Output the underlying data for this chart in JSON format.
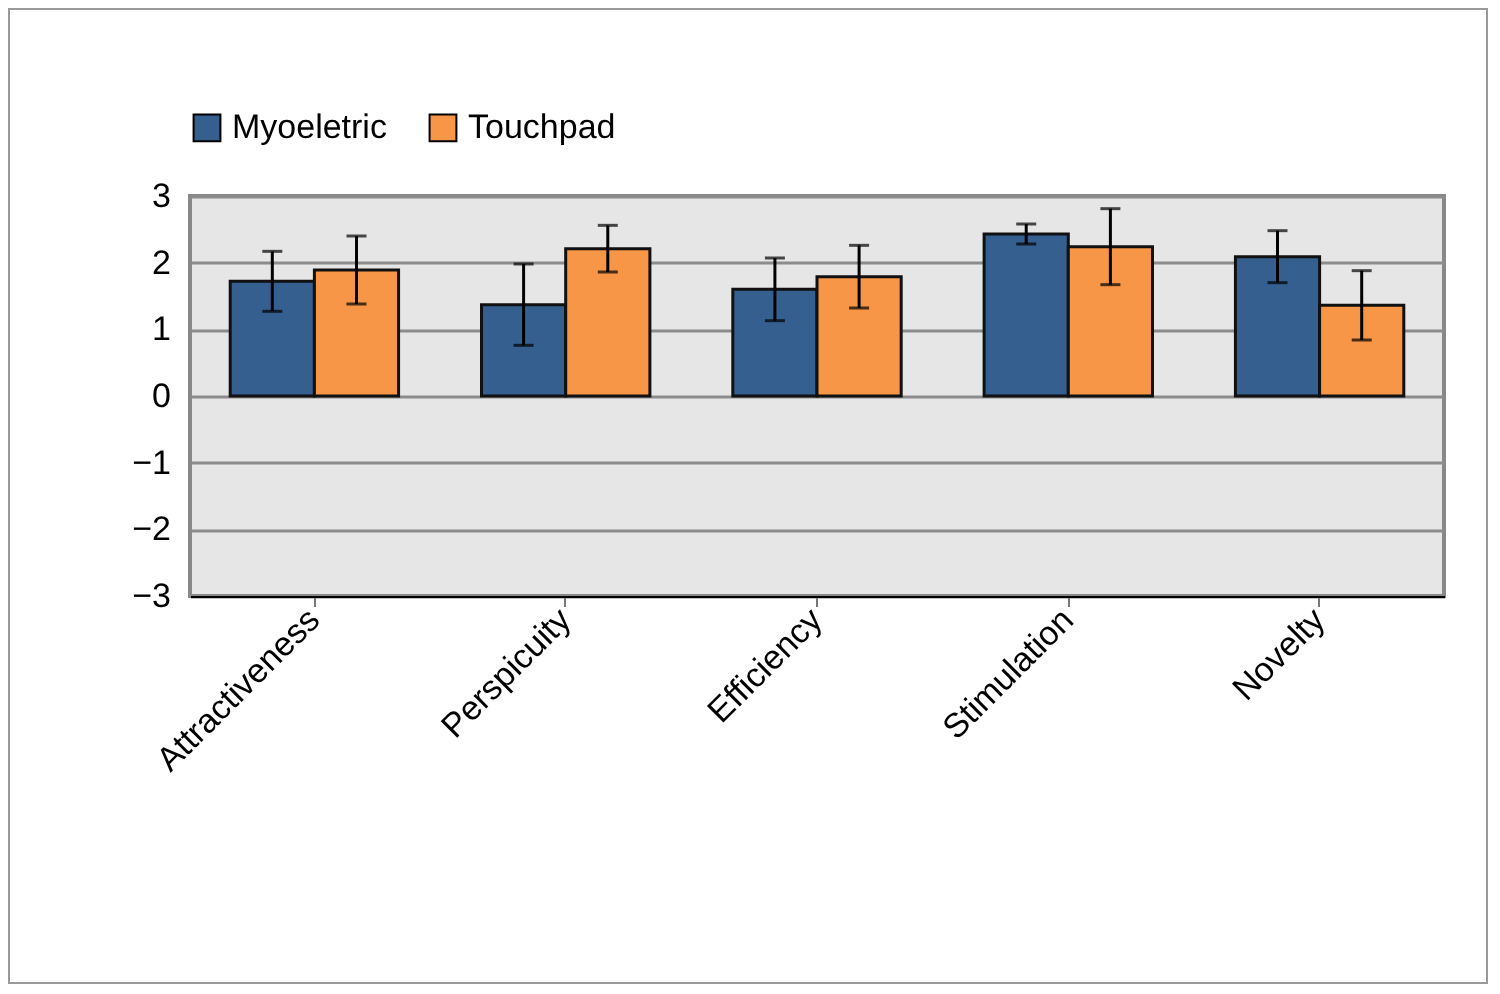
{
  "chart_data": {
    "type": "bar",
    "categories": [
      "Attractiveness",
      "Perspicuity",
      "Efficiency",
      "Stimulation",
      "Novelty"
    ],
    "series": [
      {
        "name": "Myoeletric",
        "color": "#355f8f",
        "values": [
          1.72,
          1.37,
          1.6,
          2.43,
          2.09
        ],
        "errors": [
          0.45,
          0.61,
          0.47,
          0.15,
          0.39
        ]
      },
      {
        "name": "Touchpad",
        "color": "#f79646",
        "values": [
          1.89,
          2.21,
          1.79,
          2.24,
          1.36
        ],
        "errors": [
          0.51,
          0.35,
          0.47,
          0.57,
          0.52
        ]
      }
    ],
    "ylim": [
      -3,
      3
    ],
    "yticks": [
      -3,
      -2,
      -1,
      0,
      1,
      2,
      3
    ],
    "grid": "y",
    "legend": "top"
  }
}
